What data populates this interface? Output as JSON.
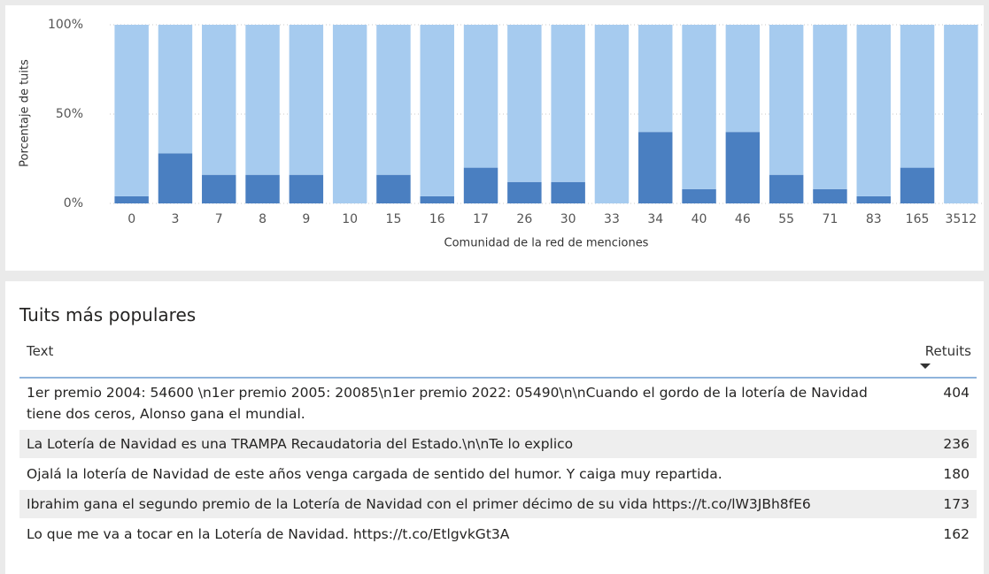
{
  "chart_data": {
    "type": "stacked_bar",
    "y_label": "Porcentaje de tuits",
    "x_label": "Comunidad de la red de menciones",
    "categories": [
      "0",
      "3",
      "7",
      "8",
      "9",
      "10",
      "15",
      "16",
      "17",
      "26",
      "30",
      "33",
      "34",
      "40",
      "46",
      "55",
      "71",
      "83",
      "165",
      "3512"
    ],
    "series": [
      {
        "color": "#4a7fc1",
        "values": [
          4,
          28,
          16,
          16,
          16,
          0,
          16,
          4,
          20,
          12,
          12,
          0,
          40,
          8,
          40,
          16,
          8,
          4,
          20,
          0
        ]
      },
      {
        "color": "#a6cbef",
        "values": [
          96,
          72,
          84,
          84,
          84,
          100,
          84,
          96,
          80,
          88,
          88,
          100,
          60,
          92,
          60,
          84,
          92,
          96,
          80,
          100
        ]
      }
    ],
    "ylim": [
      0,
      100
    ],
    "yticks": [
      {
        "value": 0,
        "label": "0%"
      },
      {
        "value": 50,
        "label": "50%"
      },
      {
        "value": 100,
        "label": "100%"
      }
    ],
    "grid": true
  },
  "table": {
    "title": "Tuits más populares",
    "columns": [
      "Text",
      "Retuits"
    ],
    "rows": [
      [
        "1er premio 2004: 54600 \\n1er premio 2005: 20085\\n1er premio 2022: 05490\\n\\nCuando el gordo de la lotería de Navidad tiene dos ceros, Alonso gana el mundial.",
        "404"
      ],
      [
        "La Lotería de Navidad es una TRAMPA Recaudatoria del Estado.\\n\\nTe lo explico",
        "236"
      ],
      [
        "Ojalá la lotería de Navidad de este años venga cargada de sentido del humor. Y caiga muy repartida.",
        "180"
      ],
      [
        "Ibrahim gana el segundo premio de la Lotería de Navidad con el primer décimo de su vida https://t.co/lW3JBh8fE6",
        "173"
      ],
      [
        "Lo que me va a tocar en la Lotería de Navidad. https://t.co/EtlgvkGt3A",
        "162"
      ]
    ]
  }
}
